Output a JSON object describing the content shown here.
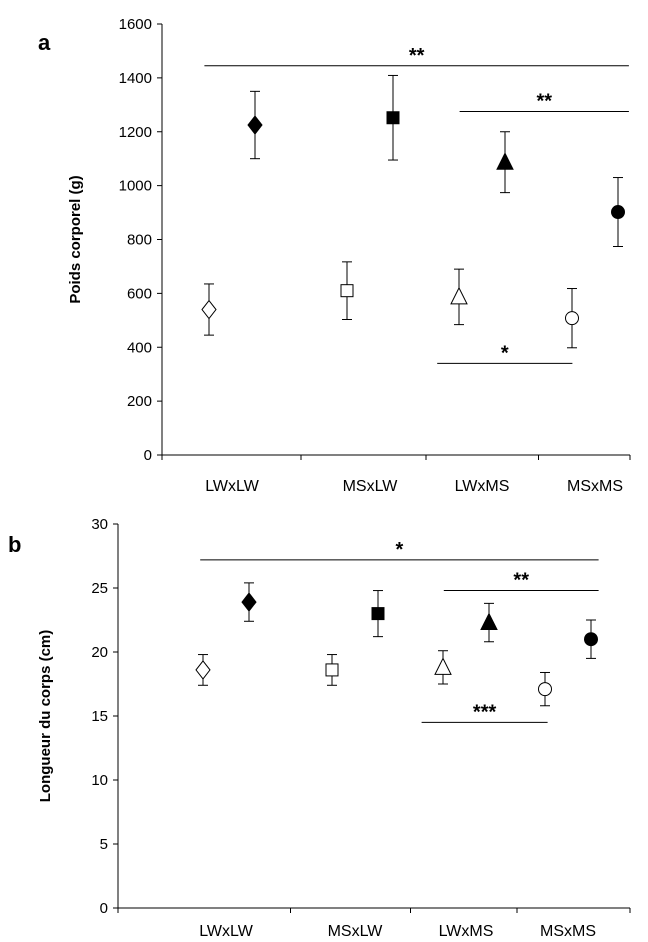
{
  "chart_data": [
    {
      "type": "scatter",
      "panel_label": "a",
      "title": "",
      "xlabel": "",
      "ylabel": "Poids corporel (g)",
      "ylim": [
        0,
        1600
      ],
      "yticks": [
        "0",
        "200",
        "400",
        "600",
        "800",
        "1000",
        "1200",
        "1400",
        "1600"
      ],
      "categories": [
        "LWxLW",
        "MSxLW",
        "LWxMS",
        "MSxMS"
      ],
      "grid": false,
      "legend": "none",
      "series": [
        {
          "marker": "diamond",
          "filled": true,
          "category": "LWxLW",
          "x_offset": 1,
          "value": 1225,
          "error": 125
        },
        {
          "marker": "diamond",
          "filled": false,
          "category": "LWxLW",
          "x_offset": -1,
          "value": 540,
          "error": 95
        },
        {
          "marker": "square",
          "filled": true,
          "category": "MSxLW",
          "x_offset": 1,
          "value": 1252,
          "error": 157
        },
        {
          "marker": "square",
          "filled": false,
          "category": "MSxLW",
          "x_offset": -1,
          "value": 610,
          "error": 107
        },
        {
          "marker": "triangle",
          "filled": true,
          "category": "LWxMS",
          "x_offset": 1,
          "value": 1087,
          "error": 113
        },
        {
          "marker": "triangle",
          "filled": false,
          "category": "LWxMS",
          "x_offset": -1,
          "value": 587,
          "error": 103
        },
        {
          "marker": "circle",
          "filled": true,
          "category": "MSxMS",
          "x_offset": 1,
          "value": 902,
          "error": 128
        },
        {
          "marker": "circle",
          "filled": false,
          "category": "MSxMS",
          "x_offset": -1,
          "value": 508,
          "error": 110
        }
      ],
      "significance": [
        {
          "label": "**",
          "y": 1445,
          "from": 0.8,
          "to": 4.3
        },
        {
          "label": "**",
          "y": 1275,
          "from": 2.8,
          "to": 4.3
        },
        {
          "label": "*",
          "y": 340,
          "from": 2.6,
          "to": 3.8
        }
      ]
    },
    {
      "type": "scatter",
      "panel_label": "b",
      "title": "",
      "xlabel": "",
      "ylabel": "Longueur du corps (cm)",
      "ylim": [
        0,
        30
      ],
      "yticks": [
        "0",
        "5",
        "10",
        "15",
        "20",
        "25",
        "30"
      ],
      "categories": [
        "LWxLW",
        "MSxLW",
        "LWxMS",
        "MSxMS"
      ],
      "grid": false,
      "legend": "none",
      "series": [
        {
          "marker": "diamond",
          "filled": true,
          "category": "LWxLW",
          "x_offset": 1,
          "value": 23.9,
          "error": 1.5
        },
        {
          "marker": "diamond",
          "filled": false,
          "category": "LWxLW",
          "x_offset": -1,
          "value": 18.6,
          "error": 1.2
        },
        {
          "marker": "square",
          "filled": true,
          "category": "MSxLW",
          "x_offset": 1,
          "value": 23.0,
          "error": 1.8
        },
        {
          "marker": "square",
          "filled": false,
          "category": "MSxLW",
          "x_offset": -1,
          "value": 18.6,
          "error": 1.2
        },
        {
          "marker": "triangle",
          "filled": true,
          "category": "LWxMS",
          "x_offset": 1,
          "value": 22.3,
          "error": 1.5
        },
        {
          "marker": "triangle",
          "filled": false,
          "category": "LWxMS",
          "x_offset": -1,
          "value": 18.8,
          "error": 1.3
        },
        {
          "marker": "circle",
          "filled": true,
          "category": "MSxMS",
          "x_offset": 1,
          "value": 21.0,
          "error": 1.5
        },
        {
          "marker": "circle",
          "filled": false,
          "category": "MSxMS",
          "x_offset": -1,
          "value": 17.1,
          "error": 1.3
        }
      ],
      "significance": [
        {
          "label": "*",
          "y": 27.2,
          "from": 0.8,
          "to": 4.3
        },
        {
          "label": "**",
          "y": 24.8,
          "from": 2.8,
          "to": 4.3
        },
        {
          "label": "***",
          "y": 14.5,
          "from": 2.6,
          "to": 3.8
        }
      ]
    }
  ]
}
